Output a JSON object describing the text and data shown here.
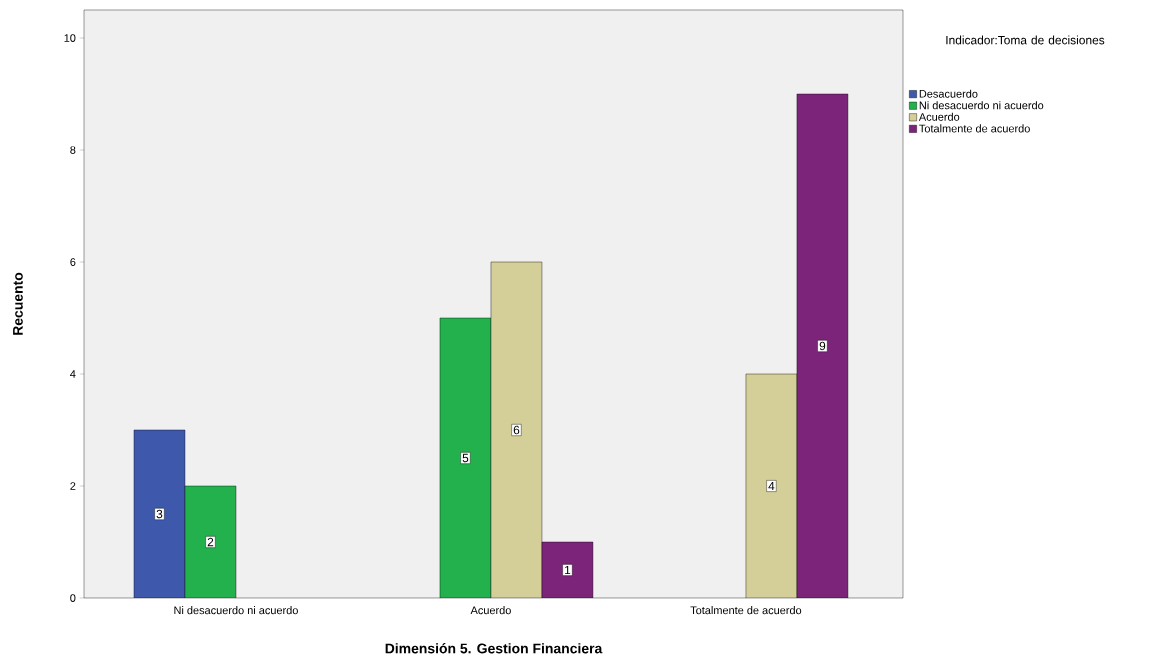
{
  "chart_data": {
    "type": "bar",
    "xlabel": "Dimensión 5. Gestion Financiera",
    "ylabel": "Recuento",
    "legend_title": "Indicador:Toma de decisiones",
    "categories": [
      "Ni desacuerdo ni acuerdo",
      "Acuerdo",
      "Totalmente de acuerdo"
    ],
    "series": [
      {
        "name": "Desacuerdo",
        "color": "#3e58ac",
        "values": [
          3,
          null,
          null
        ]
      },
      {
        "name": "Ni desacuerdo ni acuerdo",
        "color": "#22b14c",
        "values": [
          2,
          5,
          null
        ]
      },
      {
        "name": "Acuerdo",
        "color": "#d4ce98",
        "values": [
          null,
          6,
          4
        ]
      },
      {
        "name": "Totalmente de acuerdo",
        "color": "#7b2479",
        "values": [
          null,
          1,
          9
        ]
      }
    ],
    "ylim": [
      0,
      10.5
    ],
    "yticks": [
      0,
      2,
      4,
      6,
      8,
      10
    ],
    "data_labels": true,
    "legend": "right",
    "grid": false
  }
}
